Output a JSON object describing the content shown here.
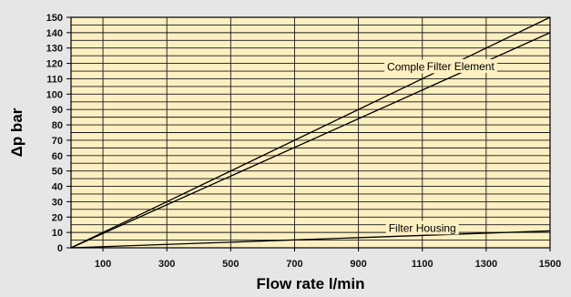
{
  "chart_data": {
    "type": "line",
    "xlabel": "Flow rate l/min",
    "ylabel": "Δp bar",
    "xlim": [
      0,
      1500
    ],
    "ylim": [
      0,
      150
    ],
    "x_ticks": [
      100,
      300,
      500,
      700,
      900,
      1100,
      1300,
      1500
    ],
    "x_gridlines": [
      100,
      300,
      500,
      700,
      900,
      1100,
      1300
    ],
    "y_ticks": [
      0,
      10,
      20,
      30,
      40,
      50,
      60,
      70,
      80,
      90,
      100,
      110,
      120,
      130,
      140,
      150
    ],
    "y_minor_step": 5,
    "grid": true,
    "series": [
      {
        "name": "Complete filter",
        "x": [
          0,
          1500
        ],
        "y": [
          0,
          150
        ],
        "label_at": 1100
      },
      {
        "name": "Filter Element",
        "x": [
          0,
          1500
        ],
        "y": [
          0,
          140
        ],
        "label_at": 1220
      },
      {
        "name": "Filter Housing",
        "x": [
          0,
          1500
        ],
        "y": [
          0,
          11
        ],
        "label_at": 1100
      }
    ]
  },
  "colors": {
    "plot_background": "#fcefc1",
    "gridline": "#1a1a1a",
    "series_line": "#000000",
    "page_background": "#e6e6e6"
  }
}
